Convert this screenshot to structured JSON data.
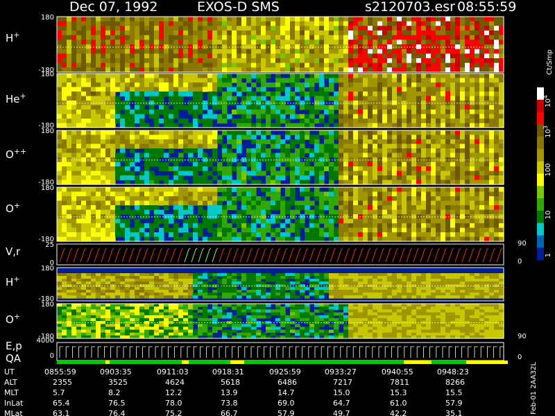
{
  "header": {
    "date": "Dec 07, 1992",
    "instrument": "EXOS-D SMS",
    "file": "s2120703.esr",
    "time": "08:55:59"
  },
  "chart_data": {
    "type": "heatmap",
    "panels": [
      {
        "id": "h1",
        "label": "H",
        "sup": "+",
        "ticks": [
          "180",
          "-180"
        ],
        "ylim": [
          -180,
          180
        ]
      },
      {
        "id": "he1",
        "label": "He",
        "sup": "+",
        "ticks": [
          "180",
          "-180"
        ],
        "ylim": [
          -180,
          180
        ]
      },
      {
        "id": "opp",
        "label": "O",
        "sup": "++",
        "ticks": [
          "180",
          "-180"
        ],
        "ylim": [
          -180,
          180
        ]
      },
      {
        "id": "o1",
        "label": "O",
        "sup": "+",
        "ticks": [
          "180",
          "-180"
        ],
        "ylim": [
          -180,
          180
        ]
      },
      {
        "id": "vr",
        "label": "V,r",
        "sup": "",
        "ticks": [
          "25",
          "0"
        ],
        "right_ticks": [
          "90",
          "0"
        ]
      },
      {
        "id": "h2",
        "label": "H",
        "sup": "+",
        "ticks": [
          "180",
          "-180"
        ],
        "ylim": [
          -180,
          180
        ]
      },
      {
        "id": "o2",
        "label": "O",
        "sup": "+",
        "ticks": [
          "180",
          "-180",
          "4000"
        ],
        "right_ticks": [
          "90"
        ]
      },
      {
        "id": "ep",
        "label": "E,p",
        "label2": "QA",
        "sup": "",
        "ticks": [
          "0"
        ],
        "right_ticks": [
          "0"
        ]
      }
    ],
    "colorbar": {
      "title": "Ct/Smp",
      "scale": "log",
      "range": [
        1,
        10000
      ],
      "tick_labels": [
        {
          "base": "10",
          "exp": "4"
        },
        {
          "base": "10",
          "exp": "3"
        },
        {
          "text": "100"
        },
        {
          "text": "10"
        },
        {
          "text": "1"
        }
      ],
      "colors": [
        "#ffffff",
        "#c80000",
        "#ff0000",
        "#6e5a00",
        "#8c7800",
        "#a09600",
        "#c8c800",
        "#ffff00",
        "#78c800",
        "#30a800",
        "#007800",
        "#00c8c8",
        "#0064b4",
        "#001e96"
      ]
    },
    "ephemeris": {
      "rows": [
        "UT",
        "ALT",
        "MLT",
        "InLat",
        "MLat"
      ],
      "columns": [
        [
          "0855:59",
          "2355",
          "5.7",
          "65.4",
          "63.1"
        ],
        [
          "0903:35",
          "3525",
          "8.2",
          "76.5",
          "76.4"
        ],
        [
          "0911:03",
          "4624",
          "12.2",
          "78.0",
          "75.2"
        ],
        [
          "0918:31",
          "5618",
          "13.9",
          "73.8",
          "66.7"
        ],
        [
          "0925:59",
          "6486",
          "14.7",
          "69.0",
          "57.9"
        ],
        [
          "0933:27",
          "7217",
          "15.0",
          "64.7",
          "49.7"
        ],
        [
          "0940:55",
          "7811",
          "15.3",
          "61.0",
          "42.2"
        ],
        [
          "0948:23",
          "8266",
          "15.5",
          "57.9",
          "35.1"
        ]
      ]
    }
  },
  "footer": {
    "stamp": "Feb-01 2AA32L"
  }
}
